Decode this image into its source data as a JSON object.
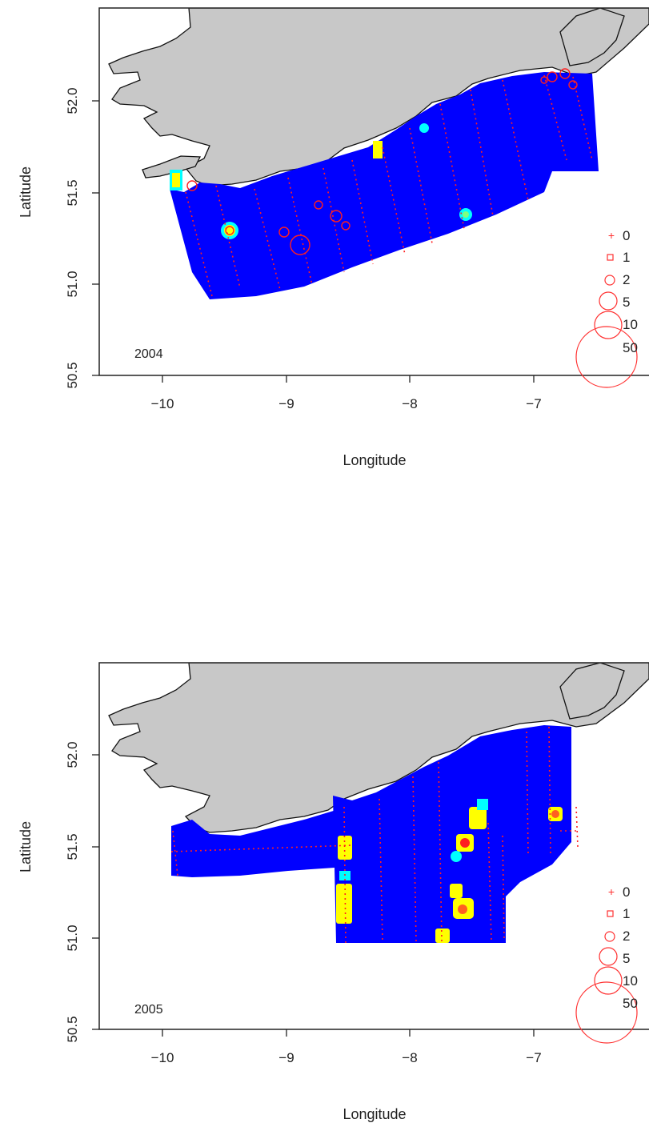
{
  "panels": [
    {
      "year": "2004",
      "xlabel": "Longitude",
      "ylabel": "Latitude",
      "x_ticks": [
        "−10",
        "−9",
        "−8",
        "−7"
      ],
      "y_ticks": [
        "50.5",
        "51.0",
        "51.5",
        "52.0"
      ],
      "legend": [
        "0",
        "1",
        "2",
        "5",
        "10",
        "50"
      ]
    },
    {
      "year": "2005",
      "xlabel": "Longitude",
      "ylabel": "Latitude",
      "x_ticks": [
        "−10",
        "−9",
        "−8",
        "−7"
      ],
      "y_ticks": [
        "50.5",
        "51.0",
        "51.5",
        "52.0"
      ],
      "legend": [
        "0",
        "1",
        "2",
        "5",
        "10",
        "50"
      ]
    }
  ],
  "colors": {
    "land": "#c8c8c8",
    "coast": "#111111",
    "survey": "#0000ff",
    "hotspot_yellow": "#ffff00",
    "hotspot_cyan": "#00ffff",
    "hotspot_green": "#7fff7f",
    "stations": "#ff2020"
  }
}
